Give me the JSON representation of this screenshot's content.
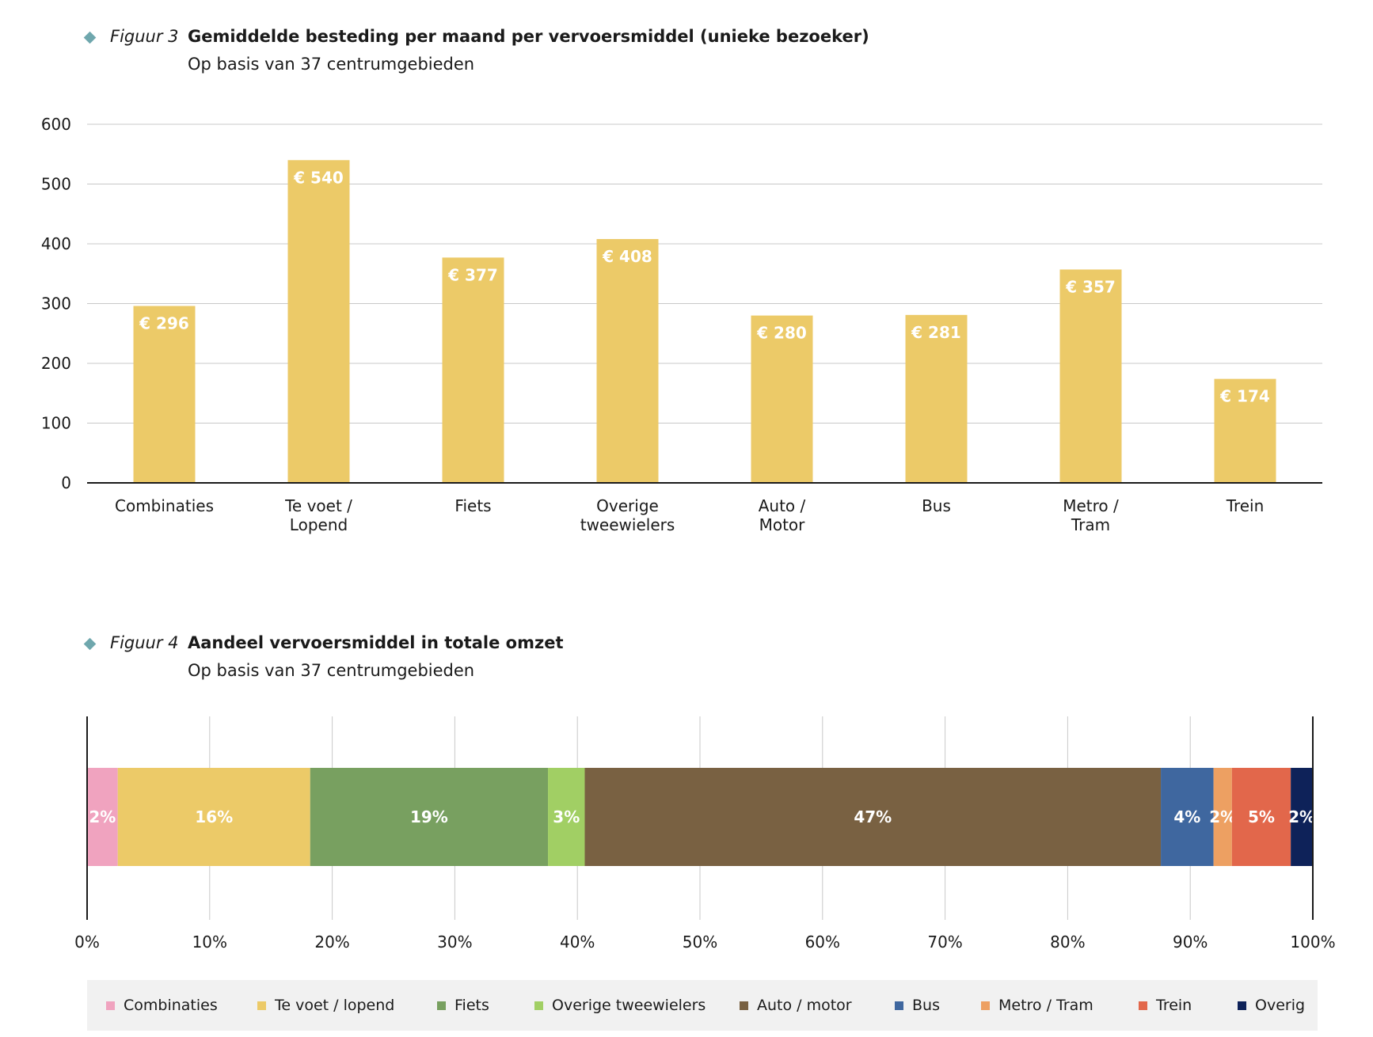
{
  "fig3": {
    "number": "Figuur 3",
    "title": "Gemiddelde besteding per maand per vervoersmiddel (unieke bezoeker)",
    "subtitle": "Op basis van 37 centrumgebieden"
  },
  "fig4": {
    "number": "Figuur 4",
    "title": "Aandeel vervoersmiddel in totale omzet",
    "subtitle": "Op basis van 37 centrumgebieden"
  },
  "chart_data": [
    {
      "type": "bar",
      "title": "Gemiddelde besteding per maand per vervoersmiddel (unieke bezoeker)",
      "subtitle": "Op basis van 37 centrumgebieden",
      "categories": [
        [
          "Combinaties"
        ],
        [
          "Te voet /",
          "Lopend"
        ],
        [
          "Fiets"
        ],
        [
          "Overige",
          "tweewielers"
        ],
        [
          "Auto /",
          "Motor"
        ],
        [
          "Bus"
        ],
        [
          "Metro /",
          "Tram"
        ],
        [
          "Trein"
        ]
      ],
      "values": [
        296,
        540,
        377,
        408,
        280,
        281,
        357,
        174
      ],
      "value_labels": [
        "€ 296",
        "€ 540",
        "€ 377",
        "€ 408",
        "€ 280",
        "€ 281",
        "€ 357",
        "€ 174"
      ],
      "ylim": [
        0,
        600
      ],
      "yticks": [
        0,
        100,
        200,
        300,
        400,
        500,
        600
      ],
      "grid": true,
      "color": "#ecca68"
    },
    {
      "type": "bar",
      "orientation": "horizontal-stacked-100",
      "title": "Aandeel vervoersmiddel in totale omzet",
      "subtitle": "Op basis van 37 centrumgebieden",
      "xlim": [
        0,
        100
      ],
      "xticks": [
        "0%",
        "10%",
        "20%",
        "30%",
        "40%",
        "50%",
        "60%",
        "70%",
        "80%",
        "90%",
        "100%"
      ],
      "grid": true,
      "legend_position": "bottom",
      "segments": [
        {
          "name": "Combinaties",
          "value": 2.5,
          "label": "2%",
          "color": "#f0a3bf"
        },
        {
          "name": "Te voet / lopend",
          "value": 15.7,
          "label": "16%",
          "color": "#ecca68"
        },
        {
          "name": "Fiets",
          "value": 19.4,
          "label": "19%",
          "color": "#78a060"
        },
        {
          "name": "Overige tweewielers",
          "value": 3.0,
          "label": "3%",
          "color": "#a1cf64"
        },
        {
          "name": "Auto / motor",
          "value": 47.0,
          "label": "47%",
          "color": "#796142"
        },
        {
          "name": "Bus",
          "value": 4.3,
          "label": "4%",
          "color": "#3f679f"
        },
        {
          "name": "Metro / Tram",
          "value": 1.5,
          "label": "2%",
          "color": "#eda062"
        },
        {
          "name": "Trein",
          "value": 4.8,
          "label": "5%",
          "color": "#e2674b"
        },
        {
          "name": "Overig",
          "value": 1.8,
          "label": "2%",
          "color": "#0e2259"
        }
      ]
    }
  ]
}
